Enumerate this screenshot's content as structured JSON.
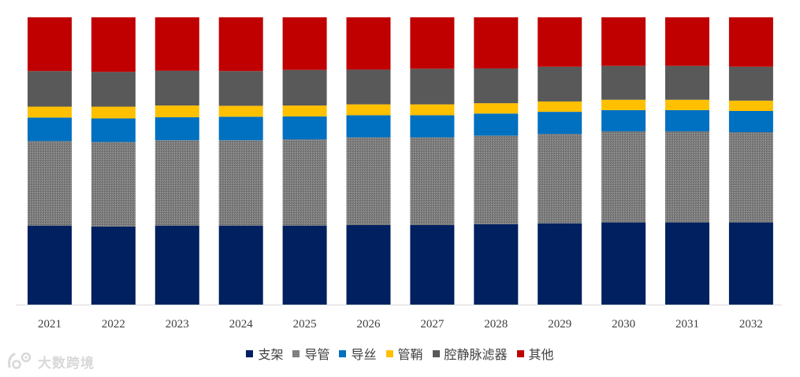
{
  "chart_data": {
    "type": "bar",
    "stacked": true,
    "normalized": true,
    "categories": [
      "2021",
      "2022",
      "2023",
      "2024",
      "2025",
      "2026",
      "2027",
      "2028",
      "2029",
      "2030",
      "2031",
      "2032"
    ],
    "series": [
      {
        "name": "支架",
        "color": "#002060",
        "pattern": "solid",
        "values": [
          27.5,
          27.2,
          27.5,
          27.5,
          27.5,
          27.7,
          27.7,
          28.0,
          28.3,
          28.6,
          28.6,
          28.6
        ]
      },
      {
        "name": "导管",
        "color": "#808080",
        "pattern": "hatched",
        "values": [
          29.4,
          29.4,
          29.7,
          29.7,
          30.0,
          30.5,
          30.5,
          30.8,
          31.1,
          31.7,
          31.7,
          31.4
        ]
      },
      {
        "name": "导丝",
        "color": "#0070C0",
        "pattern": "solid",
        "values": [
          8.2,
          8.2,
          8.0,
          8.2,
          8.0,
          7.7,
          7.7,
          7.7,
          7.7,
          7.4,
          7.4,
          7.4
        ]
      },
      {
        "name": "管鞘",
        "color": "#FFC000",
        "pattern": "solid",
        "values": [
          3.8,
          4.1,
          4.1,
          3.8,
          3.8,
          3.8,
          3.8,
          3.6,
          3.6,
          3.6,
          3.6,
          3.6
        ]
      },
      {
        "name": "腔静脉滤器",
        "color": "#595959",
        "pattern": "solid",
        "values": [
          12.4,
          12.1,
          12.1,
          12.1,
          12.4,
          12.1,
          12.4,
          12.1,
          12.1,
          11.8,
          11.8,
          11.8
        ]
      },
      {
        "name": "其他",
        "color": "#C00000",
        "pattern": "solid",
        "values": [
          18.7,
          19.0,
          18.6,
          18.7,
          18.3,
          18.2,
          17.9,
          17.8,
          17.2,
          16.9,
          16.9,
          17.2
        ]
      }
    ],
    "ylim": [
      0,
      100
    ],
    "grid": false,
    "legend_position": "bottom"
  },
  "watermark": {
    "text": "大数跨境"
  }
}
